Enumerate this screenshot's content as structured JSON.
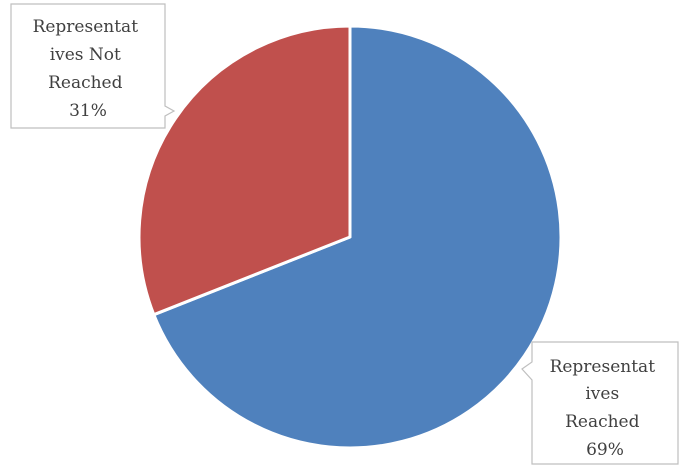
{
  "chart_data": {
    "type": "pie",
    "title": "",
    "slices": [
      {
        "label": "Representatives Reached",
        "label_lines": [
          "Representat",
          "ives",
          "Reached",
          "69%"
        ],
        "value": 69,
        "color": "#4F81BD"
      },
      {
        "label": "Representatives Not Reached",
        "label_lines": [
          "Representat",
          "ives Not",
          "Reached",
          "31%"
        ],
        "value": 31,
        "color": "#C0504D"
      }
    ],
    "legend": "none",
    "data_labels": "callouts"
  }
}
